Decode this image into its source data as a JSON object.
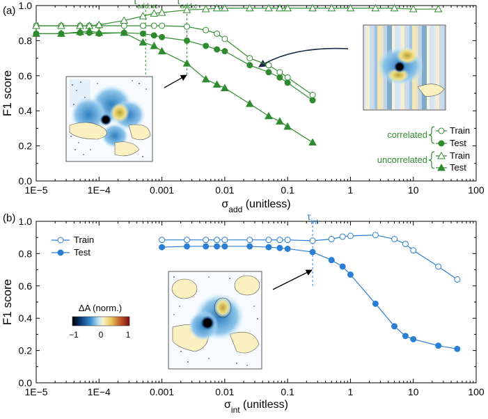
{
  "colors": {
    "green": "#2e8b2e",
    "blue": "#2a7fd4",
    "axis": "#000000"
  },
  "chart_data": [
    {
      "panel_label": "(a)",
      "type": "line",
      "xscale": "log",
      "xlim": [
        1e-05,
        100
      ],
      "ylim": [
        0.0,
        1.0
      ],
      "xticks": [
        "1E−5",
        "1E−4",
        "0.001",
        "0.01",
        "0.1",
        "1",
        "10",
        "100"
      ],
      "yticks": [
        "0.0",
        "0.2",
        "0.4",
        "0.6",
        "0.8",
        "1.0"
      ],
      "xlabel_sym": "σ",
      "xlabel_sub": "add",
      "xlabel_rest": " (unitless)",
      "ylabel": "F1 score",
      "thresholds": [
        {
          "sym": "τ",
          "sub": "add,uc",
          "x": 0.00055
        },
        {
          "sym": "τ",
          "sub": "add,c",
          "x": 0.0025
        }
      ],
      "legend": {
        "group_labels": [
          "correlated",
          "uncorrelated"
        ],
        "entries": [
          "Train",
          "Test",
          "Train",
          "Test"
        ]
      },
      "series": [
        {
          "name": "Train (correlated)",
          "marker": "circle",
          "fill": "open",
          "x": [
            1e-05,
            2.5e-05,
            5e-05,
            7e-05,
            0.0001,
            0.00025,
            0.0005,
            0.00075,
            0.001,
            0.0025,
            0.005,
            0.0075,
            0.01,
            0.025,
            0.05,
            0.075,
            0.1,
            0.25
          ],
          "values": [
            0.885,
            0.885,
            0.885,
            0.885,
            0.885,
            0.885,
            0.885,
            0.885,
            0.885,
            0.88,
            0.86,
            0.84,
            0.81,
            0.7,
            0.66,
            0.62,
            0.59,
            0.49
          ]
        },
        {
          "name": "Test (correlated)",
          "marker": "circle",
          "fill": "filled",
          "x": [
            1e-05,
            2.5e-05,
            5e-05,
            7e-05,
            0.0001,
            0.00025,
            0.0005,
            0.00075,
            0.001,
            0.0025,
            0.005,
            0.0075,
            0.01,
            0.025,
            0.05,
            0.075,
            0.1,
            0.25
          ],
          "values": [
            0.84,
            0.84,
            0.845,
            0.845,
            0.84,
            0.845,
            0.84,
            0.83,
            0.82,
            0.8,
            0.77,
            0.75,
            0.74,
            0.66,
            0.62,
            0.59,
            0.56,
            0.46
          ]
        },
        {
          "name": "Train (uncorrelated)",
          "marker": "triangle",
          "fill": "open",
          "x": [
            1e-05,
            2.5e-05,
            5e-05,
            7e-05,
            0.0001,
            0.00025,
            0.0005,
            0.00075,
            0.001,
            0.0025,
            0.005,
            0.0075,
            0.01,
            0.025,
            0.05,
            0.075,
            0.1,
            0.25,
            0.5,
            1,
            2.5,
            5,
            10,
            25
          ],
          "values": [
            0.885,
            0.885,
            0.885,
            0.885,
            0.89,
            0.915,
            0.94,
            0.955,
            0.96,
            0.975,
            0.98,
            0.985,
            0.985,
            0.985,
            0.985,
            0.985,
            0.985,
            0.985,
            0.985,
            0.985,
            0.985,
            0.985,
            0.98,
            0.98
          ]
        },
        {
          "name": "Test (uncorrelated)",
          "marker": "triangle",
          "fill": "filled",
          "x": [
            1e-05,
            2.5e-05,
            5e-05,
            7e-05,
            0.0001,
            0.00025,
            0.0005,
            0.00075,
            0.001,
            0.0025,
            0.005,
            0.0075,
            0.01,
            0.025,
            0.05,
            0.075,
            0.1,
            0.25
          ],
          "values": [
            0.84,
            0.84,
            0.85,
            0.855,
            0.845,
            0.845,
            0.79,
            0.77,
            0.74,
            0.67,
            0.58,
            0.55,
            0.53,
            0.44,
            0.37,
            0.34,
            0.31,
            0.22
          ]
        }
      ]
    },
    {
      "panel_label": "(b)",
      "type": "line",
      "xscale": "log",
      "xlim": [
        1e-05,
        100
      ],
      "ylim": [
        0.0,
        1.0
      ],
      "xticks": [
        "1E−5",
        "1E−4",
        "0.001",
        "0.01",
        "0.1",
        "1",
        "10",
        "100"
      ],
      "yticks": [
        "0.0",
        "0.2",
        "0.4",
        "0.6",
        "0.8",
        "1.0"
      ],
      "xlabel_sym": "σ",
      "xlabel_sub": "int",
      "xlabel_rest": " (unitless)",
      "ylabel": "F1 score",
      "thresholds": [
        {
          "sym": "τ",
          "sub": "int",
          "x": 0.25
        }
      ],
      "legend": {
        "entries": [
          "Train",
          "Test"
        ]
      },
      "colorbar": {
        "label": "ΔA (norm.)",
        "ticks": [
          "−1",
          "0",
          "1"
        ]
      },
      "series": [
        {
          "name": "Train",
          "marker": "circle",
          "fill": "open",
          "x": [
            0.001,
            0.0025,
            0.005,
            0.0075,
            0.01,
            0.025,
            0.05,
            0.075,
            0.1,
            0.25,
            0.5,
            0.75,
            1,
            2.5,
            5,
            7.5,
            10,
            25,
            50
          ],
          "values": [
            0.885,
            0.885,
            0.885,
            0.885,
            0.885,
            0.885,
            0.885,
            0.885,
            0.885,
            0.88,
            0.89,
            0.905,
            0.91,
            0.915,
            0.89,
            0.86,
            0.82,
            0.72,
            0.64
          ]
        },
        {
          "name": "Test",
          "marker": "circle",
          "fill": "filled",
          "x": [
            0.001,
            0.0025,
            0.005,
            0.0075,
            0.01,
            0.025,
            0.05,
            0.075,
            0.1,
            0.25,
            0.5,
            0.75,
            1,
            2.5,
            5,
            7.5,
            10,
            25,
            50
          ],
          "values": [
            0.84,
            0.845,
            0.845,
            0.845,
            0.845,
            0.845,
            0.84,
            0.835,
            0.83,
            0.81,
            0.76,
            0.72,
            0.67,
            0.49,
            0.35,
            0.29,
            0.27,
            0.23,
            0.21
          ]
        }
      ]
    }
  ]
}
